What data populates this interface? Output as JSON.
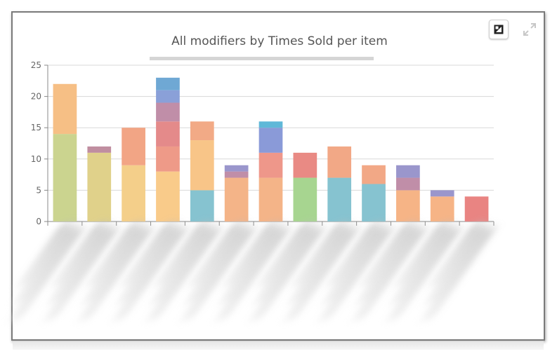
{
  "chart_data": {
    "type": "bar",
    "stacked": true,
    "title": "All modifiers by Times Sold per item",
    "ylim": [
      0,
      25
    ],
    "yticks": [
      0,
      5,
      10,
      15,
      20,
      25
    ],
    "grid": true,
    "legend": "none",
    "x_labels_visible": false,
    "bars": [
      {
        "segments": [
          {
            "value": 14,
            "color": "#cbd48f"
          },
          {
            "value": 8,
            "color": "#f6bf85"
          }
        ]
      },
      {
        "segments": [
          {
            "value": 11,
            "color": "#e0d18a"
          },
          {
            "value": 1,
            "color": "#c08ea0"
          }
        ]
      },
      {
        "segments": [
          {
            "value": 9,
            "color": "#f4cf8a"
          },
          {
            "value": 6,
            "color": "#f2a585"
          }
        ]
      },
      {
        "segments": [
          {
            "value": 8,
            "color": "#f9cb8a"
          },
          {
            "value": 4,
            "color": "#ee9a88"
          },
          {
            "value": 4,
            "color": "#e48a8a"
          },
          {
            "value": 3,
            "color": "#c08ea8"
          },
          {
            "value": 2,
            "color": "#8aa0d8"
          },
          {
            "value": 2,
            "color": "#6fa8d4"
          }
        ]
      },
      {
        "segments": [
          {
            "value": 5,
            "color": "#86c3d0"
          },
          {
            "value": 8,
            "color": "#f8c588"
          },
          {
            "value": 3,
            "color": "#f2aa86"
          }
        ]
      },
      {
        "segments": [
          {
            "value": 7,
            "color": "#f4b488"
          },
          {
            "value": 1,
            "color": "#c08ea8"
          },
          {
            "value": 1,
            "color": "#9a96cc"
          }
        ]
      },
      {
        "segments": [
          {
            "value": 7,
            "color": "#f4b488"
          },
          {
            "value": 4,
            "color": "#ee978a"
          },
          {
            "value": 4,
            "color": "#8a9ad8"
          },
          {
            "value": 1,
            "color": "#5fb8d8"
          }
        ]
      },
      {
        "segments": [
          {
            "value": 7,
            "color": "#a7d590"
          },
          {
            "value": 4,
            "color": "#e98a84"
          }
        ]
      },
      {
        "segments": [
          {
            "value": 7,
            "color": "#86c3d0"
          },
          {
            "value": 5,
            "color": "#f2a886"
          }
        ]
      },
      {
        "segments": [
          {
            "value": 6,
            "color": "#86c3d0"
          },
          {
            "value": 3,
            "color": "#f2a886"
          }
        ]
      },
      {
        "segments": [
          {
            "value": 5,
            "color": "#f6b486"
          },
          {
            "value": 2,
            "color": "#c08ea8"
          },
          {
            "value": 2,
            "color": "#9a96cc"
          }
        ]
      },
      {
        "segments": [
          {
            "value": 4,
            "color": "#f6b486"
          },
          {
            "value": 1,
            "color": "#9a96cc"
          }
        ]
      },
      {
        "segments": [
          {
            "value": 4,
            "color": "#e98482"
          }
        ]
      }
    ]
  },
  "toolbar": {
    "export_icon": "image-export-icon",
    "expand_icon": "expand-icon"
  }
}
